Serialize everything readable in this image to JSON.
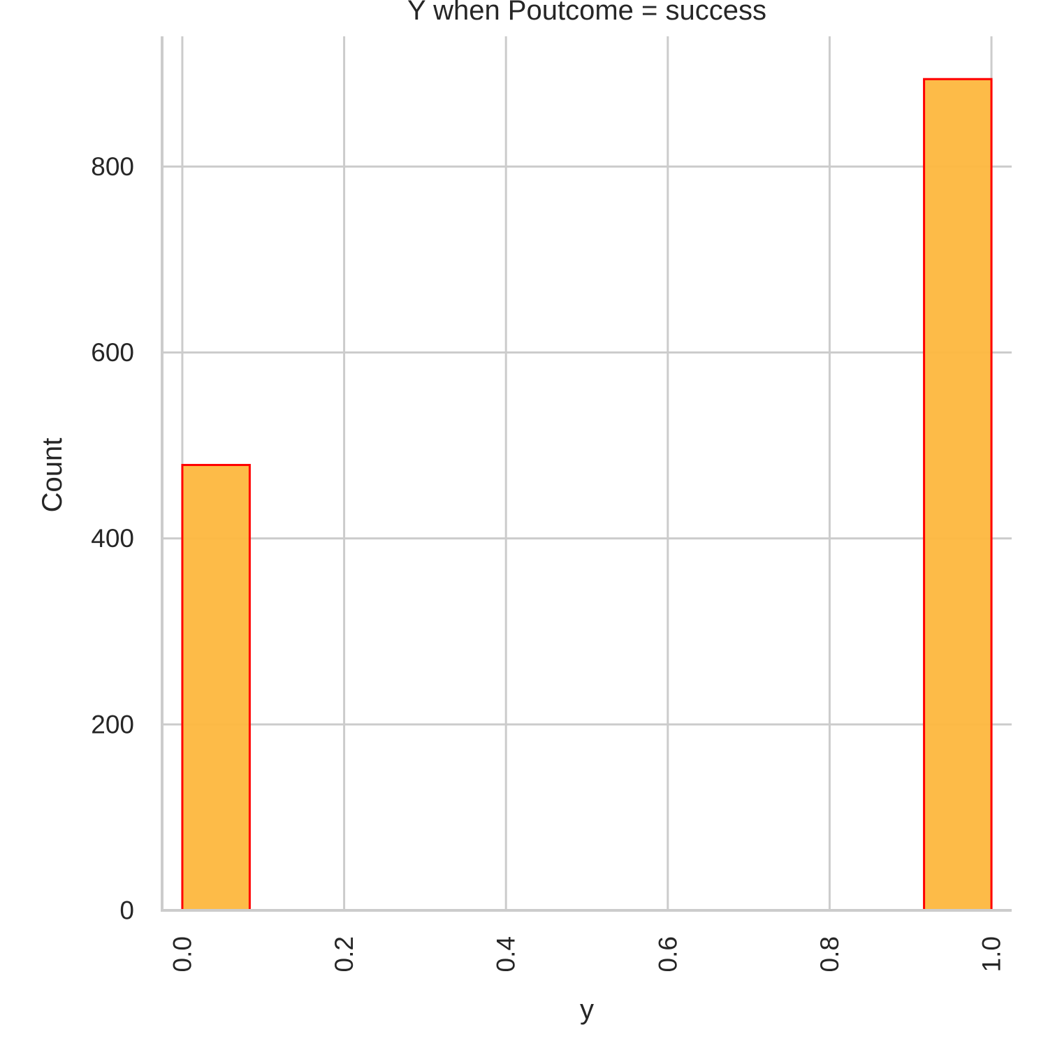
{
  "chart_data": {
    "type": "bar",
    "title": "Y when Poutcome = success",
    "xlabel": "y",
    "ylabel": "Count",
    "xlim": [
      -0.025,
      1.025
    ],
    "ylim": [
      0,
      940
    ],
    "xticks": [
      0.0,
      0.2,
      0.4,
      0.6,
      0.8,
      1.0
    ],
    "xtick_labels": [
      "0.0",
      "0.2",
      "0.4",
      "0.6",
      "0.8",
      "1.0"
    ],
    "yticks": [
      0,
      200,
      400,
      600,
      800
    ],
    "ytick_labels": [
      "0",
      "200",
      "400",
      "600",
      "800"
    ],
    "grid": true,
    "bins": [
      {
        "x_start": 0.0,
        "x_end": 0.0833,
        "count": 479
      },
      {
        "x_start": 0.9167,
        "x_end": 1.0,
        "count": 894
      }
    ],
    "colors": {
      "bar_fill": "#fdb73e",
      "bar_edge": "#ff0000",
      "grid": "#cccccc",
      "text": "#262626"
    }
  }
}
